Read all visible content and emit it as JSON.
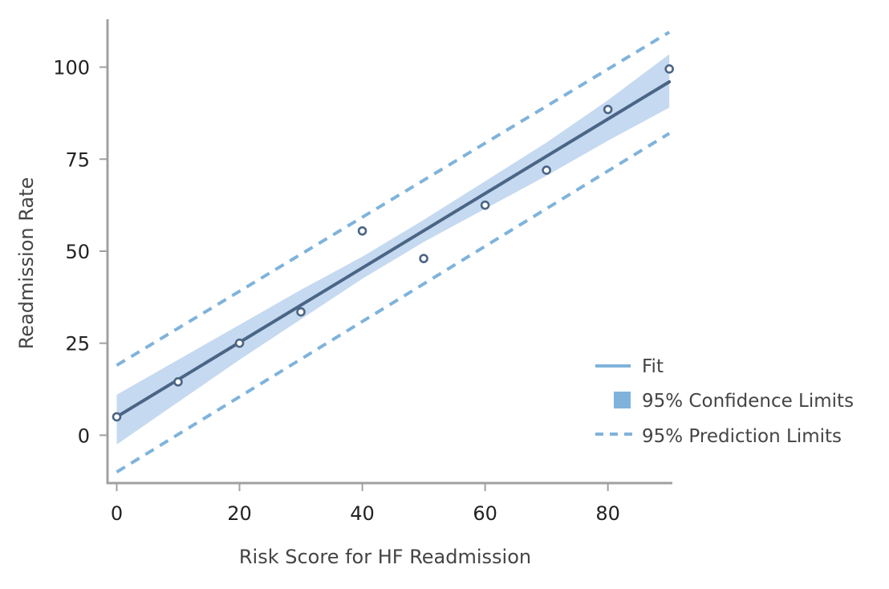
{
  "chart_data": {
    "type": "scatter",
    "title": "",
    "xlabel": "Risk Score for HF Readmission",
    "ylabel": "Readmission Rate",
    "xlim": [
      -1.5,
      90.5
    ],
    "ylim": [
      -13,
      113
    ],
    "xticks": [
      0,
      20,
      40,
      60,
      80
    ],
    "yticks": [
      0,
      25,
      50,
      75,
      100
    ],
    "grid": false,
    "legend_position": "bottom-right",
    "colors": {
      "points": "#4a6585",
      "fit": "#4a6585",
      "confidence_band": "#c5d9f0",
      "prediction": "#7fb3db",
      "legend_line": "#7fb3db",
      "legend_patch": "#7fb3db",
      "axis": "#a0a0a0"
    },
    "series": [
      {
        "name": "",
        "kind": "observed",
        "x": [
          0,
          10,
          20,
          30,
          40,
          50,
          60,
          70,
          80,
          90
        ],
        "y": [
          5,
          14.5,
          25,
          33.5,
          55.5,
          48,
          62.5,
          72,
          88.5,
          99.5
        ]
      },
      {
        "name": "Fit",
        "kind": "fit",
        "x": [
          0,
          90
        ],
        "y": [
          5,
          96
        ]
      },
      {
        "name": "95% Confidence Limits",
        "kind": "band",
        "x": [
          0,
          10,
          20,
          30,
          40,
          50,
          60,
          70,
          80,
          90
        ],
        "lower": [
          -2.5,
          9,
          20.5,
          31.5,
          42.5,
          52.5,
          61.5,
          70.5,
          80,
          89
        ],
        "upper": [
          11,
          20.5,
          30,
          39.5,
          48.5,
          58.5,
          69,
          79.5,
          91,
          103.5
        ]
      },
      {
        "name": "95% Prediction Limits",
        "kind": "prediction",
        "x": [
          0,
          90
        ],
        "lower": [
          -10,
          82
        ],
        "upper": [
          19,
          109.5
        ]
      }
    ]
  },
  "legend": {
    "items": [
      {
        "label": "Fit",
        "kind": "line"
      },
      {
        "label": "95% Confidence Limits",
        "kind": "patch"
      },
      {
        "label": "95% Prediction Limits",
        "kind": "dashed"
      }
    ]
  }
}
